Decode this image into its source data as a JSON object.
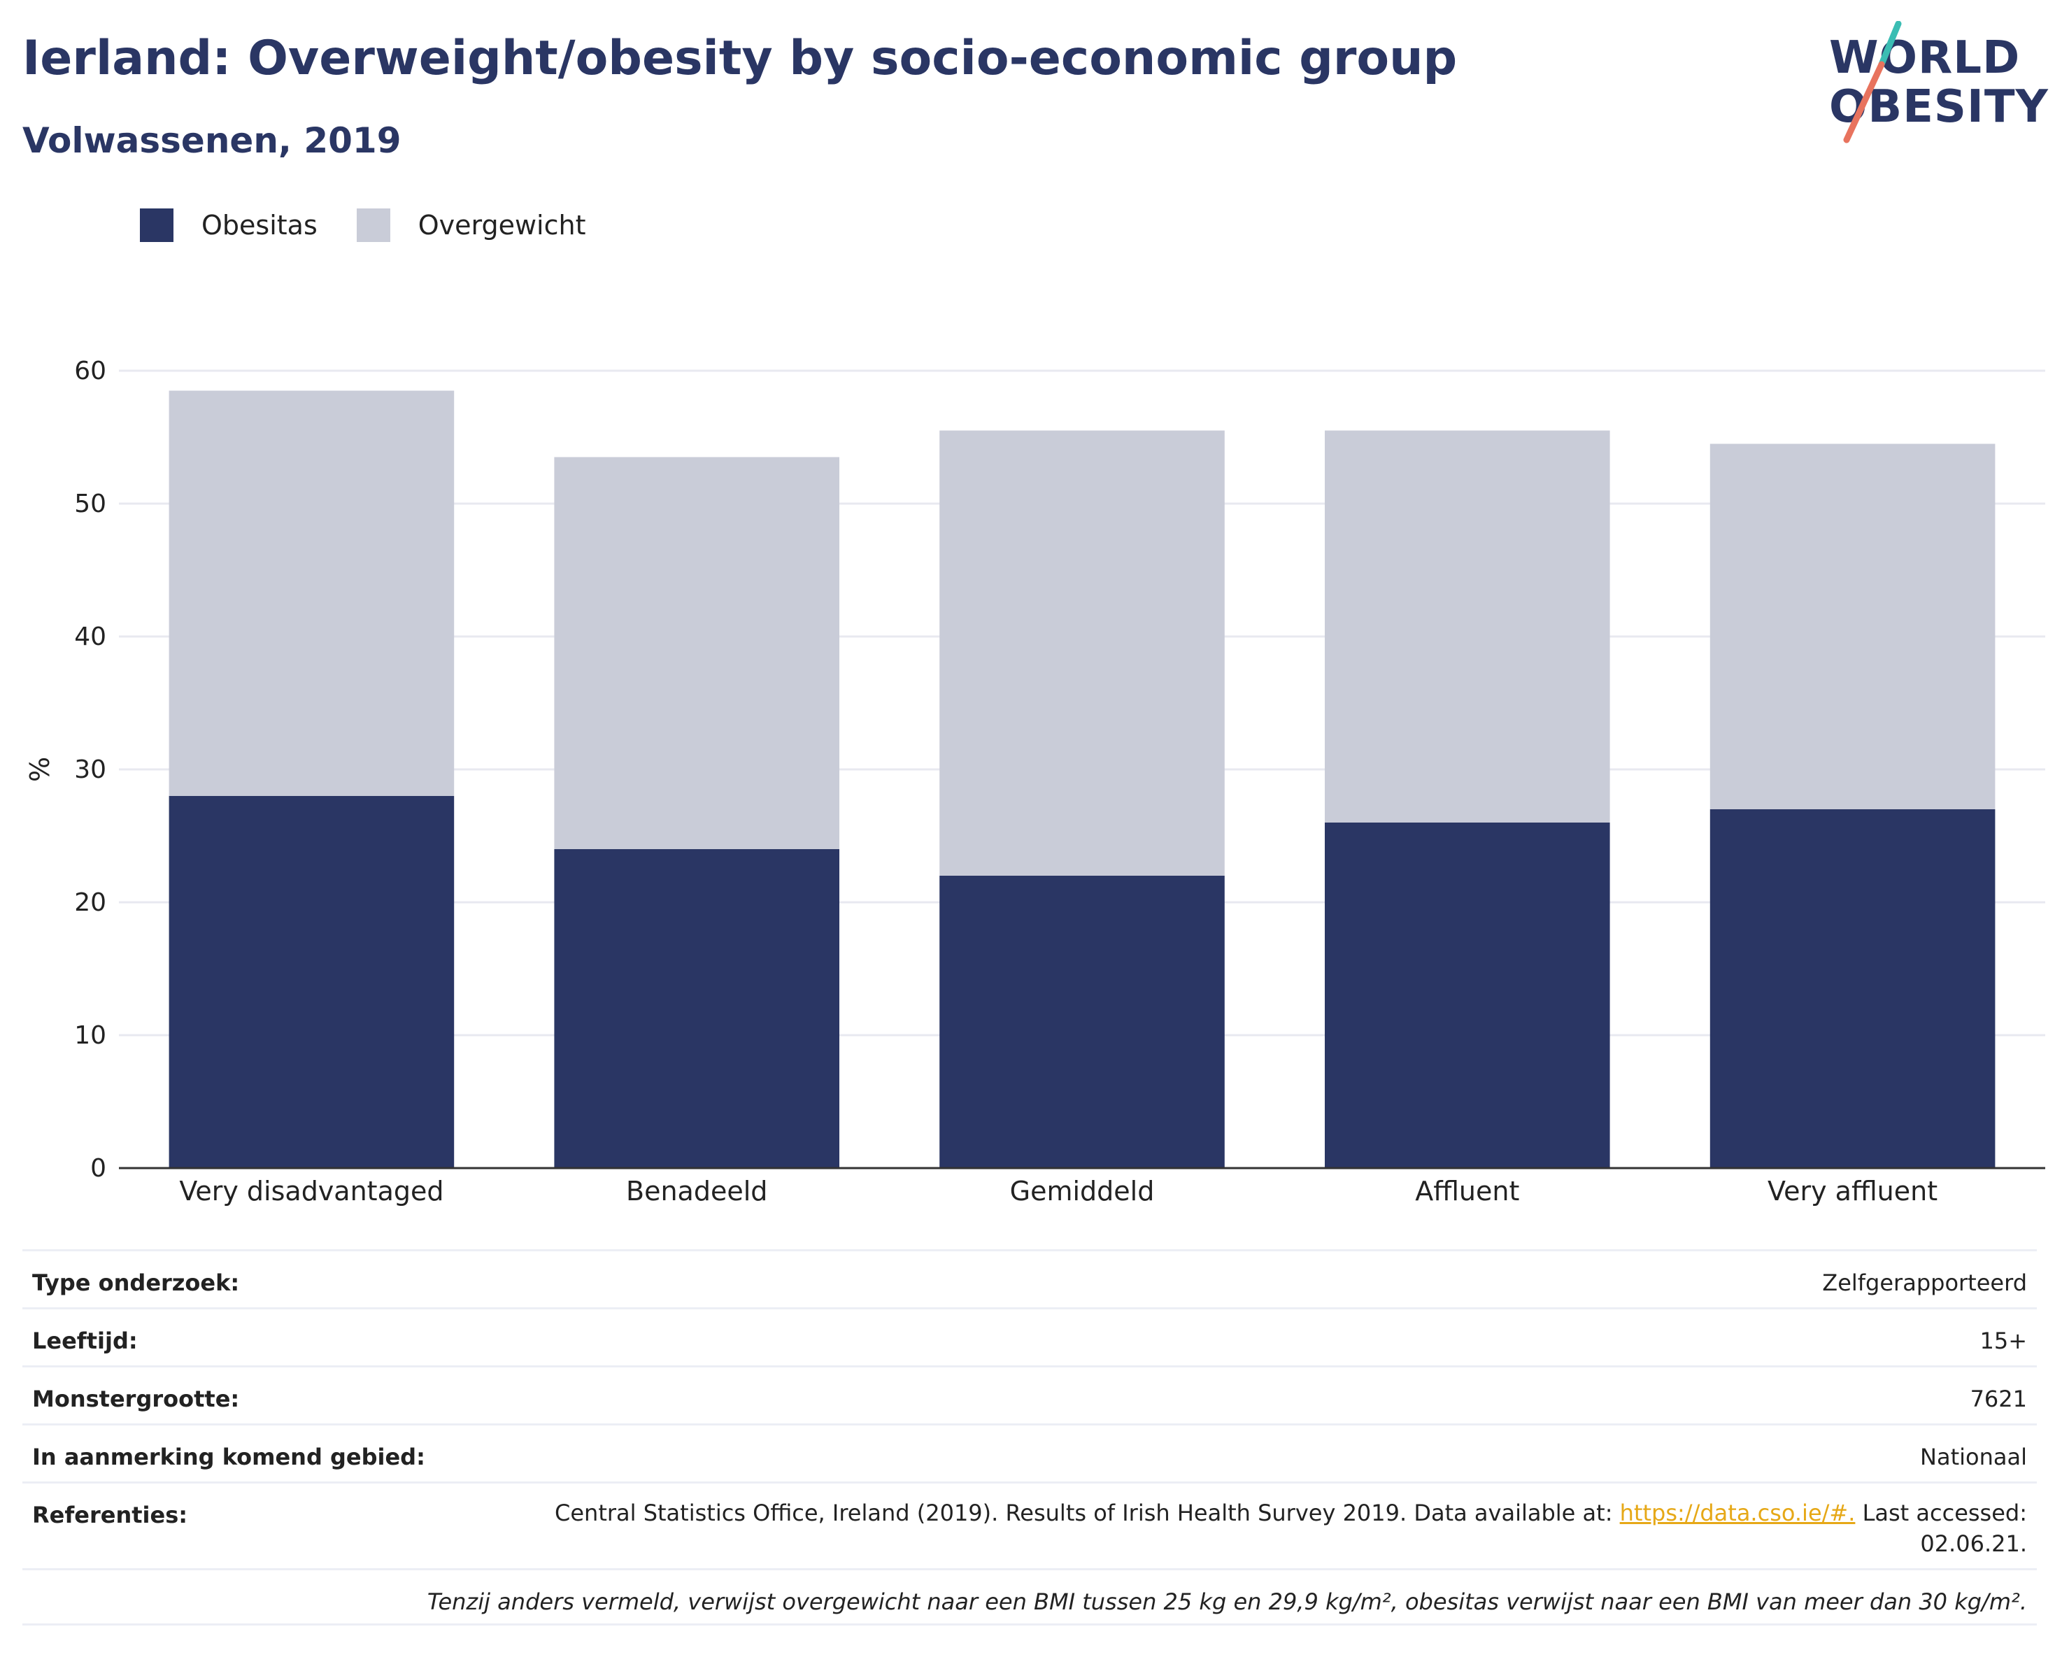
{
  "header": {
    "title": "Ierland: Overweight/obesity by socio-economic group",
    "subtitle": "Volwassenen, 2019"
  },
  "logo": {
    "line1": "WORLD",
    "line2": "OBESITY"
  },
  "colors": {
    "obesity": "#2a3664",
    "overweight": "#c9ccd8",
    "text": "#2a3664",
    "link": "#e6a817"
  },
  "chart_data": {
    "type": "bar",
    "stacked": true,
    "categories": [
      "Very disadvantaged",
      "Benadeeld",
      "Gemiddeld",
      "Affluent",
      "Very affluent"
    ],
    "series": [
      {
        "name": "Obesitas",
        "values": [
          28,
          24,
          22,
          26,
          27
        ]
      },
      {
        "name": "Overgewicht",
        "values": [
          30.5,
          29.5,
          33.5,
          29.5,
          27.5
        ]
      }
    ],
    "ylabel": "%",
    "xlabel": "",
    "ylim": [
      0,
      60
    ],
    "yticks": [
      0,
      10,
      20,
      30,
      40,
      50,
      60
    ],
    "grid": true,
    "legend_position": "top-left"
  },
  "info": {
    "rows": [
      {
        "label": "Type onderzoek:",
        "value": "Zelfgerapporteerd"
      },
      {
        "label": "Leeftijd:",
        "value": "15+"
      },
      {
        "label": "Monstergrootte:",
        "value": "7621"
      },
      {
        "label": "In aanmerking komend gebied:",
        "value": "Nationaal"
      }
    ],
    "references_label": "Referenties:",
    "references_text": "Central Statistics Office, Ireland (2019). Results of Irish Health Survey 2019. Data available at: ",
    "references_link": "https://data.cso.ie/#.",
    "references_after": " Last accessed: 02.06.21.",
    "footnote": "Tenzij anders vermeld, verwijst overgewicht naar een BMI tussen 25 kg en 29,9 kg/m², obesitas verwijst naar een BMI van meer dan 30 kg/m²."
  }
}
